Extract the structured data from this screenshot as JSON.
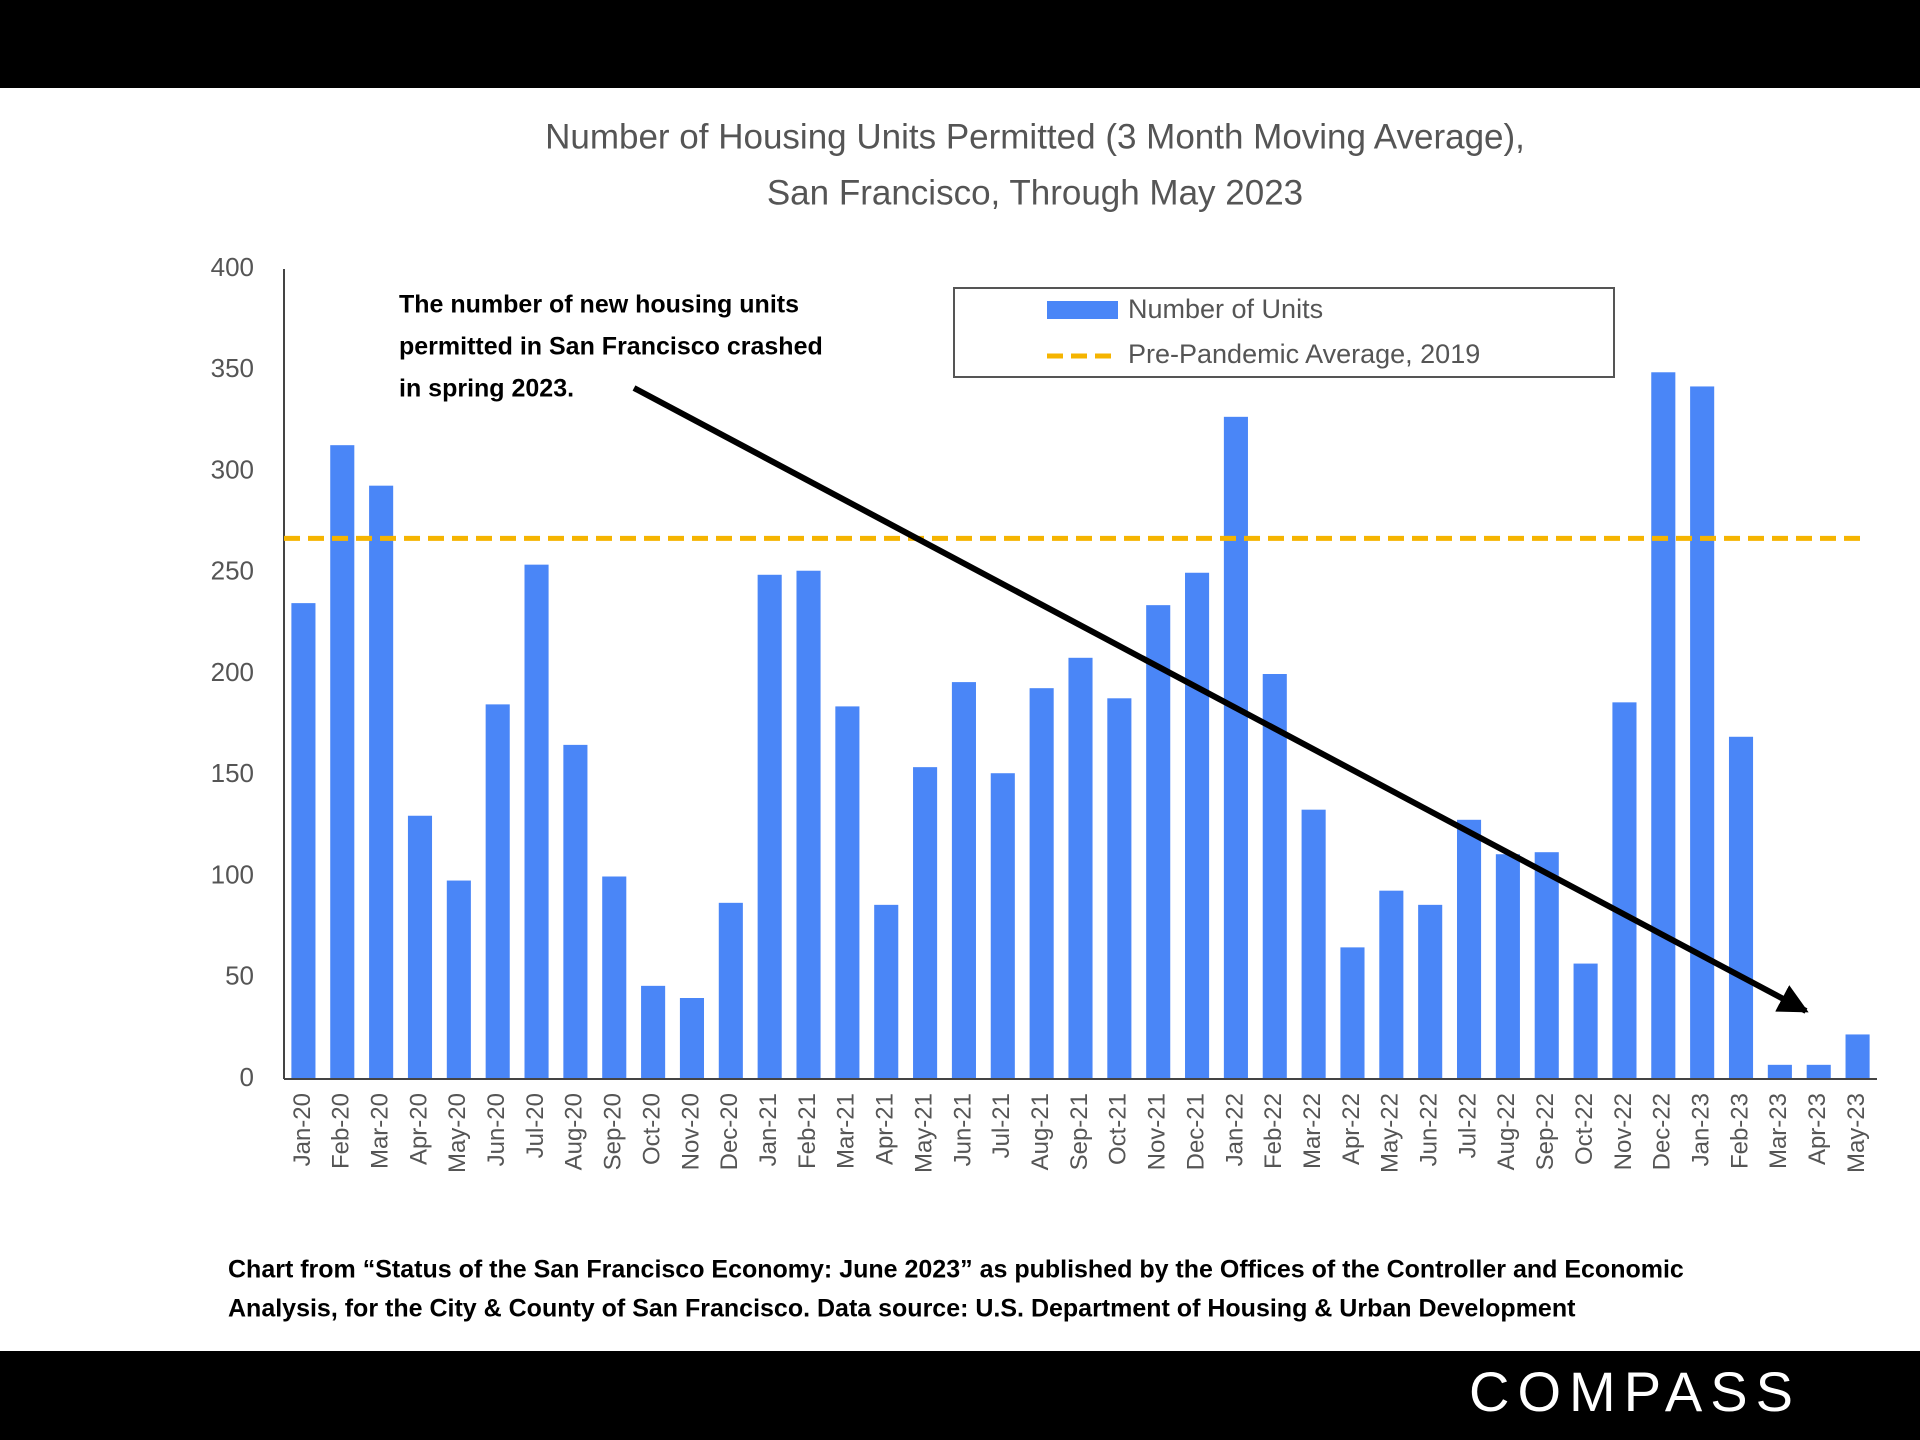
{
  "chart_data": {
    "type": "bar",
    "title": [
      "Number of Housing Units Permitted (3 Month Moving Average),",
      "San Francisco, Through May 2023"
    ],
    "categories": [
      "Jan-20",
      "Feb-20",
      "Mar-20",
      "Apr-20",
      "May-20",
      "Jun-20",
      "Jul-20",
      "Aug-20",
      "Sep-20",
      "Oct-20",
      "Nov-20",
      "Dec-20",
      "Jan-21",
      "Feb-21",
      "Mar-21",
      "Apr-21",
      "May-21",
      "Jun-21",
      "Jul-21",
      "Aug-21",
      "Sep-21",
      "Oct-21",
      "Nov-21",
      "Dec-21",
      "Jan-22",
      "Feb-22",
      "Mar-22",
      "Apr-22",
      "May-22",
      "Jun-22",
      "Jul-22",
      "Aug-22",
      "Sep-22",
      "Oct-22",
      "Nov-22",
      "Dec-22",
      "Jan-23",
      "Feb-23",
      "Mar-23",
      "Apr-23",
      "May-23"
    ],
    "series": [
      {
        "name": "Number of Units",
        "color": "#4a86f7",
        "values": [
          235,
          313,
          293,
          130,
          98,
          185,
          254,
          165,
          100,
          46,
          40,
          87,
          249,
          251,
          184,
          86,
          154,
          196,
          151,
          193,
          208,
          188,
          234,
          250,
          327,
          200,
          133,
          65,
          93,
          86,
          128,
          111,
          112,
          57,
          186,
          349,
          342,
          169,
          7,
          7,
          22
        ]
      }
    ],
    "reference_lines": [
      {
        "name": "Pre-Pandemic Average, 2019",
        "value": 267,
        "color": "#f5b400"
      }
    ],
    "ylim": [
      0,
      400
    ],
    "yticks": [
      0,
      50,
      100,
      150,
      200,
      250,
      300,
      350,
      400
    ],
    "grid": false,
    "annotation": [
      "The number of new housing units",
      "permitted in San Francisco crashed",
      "in spring 2023."
    ],
    "footnote": [
      "Chart from “Status of the San Francisco Economy: June 2023” as published by the Offices of the Controller and Economic",
      "Analysis, for the City & County of San Francisco. Data source:  U.S. Department of Housing & Urban Development"
    ]
  },
  "logo": "COMPASS"
}
